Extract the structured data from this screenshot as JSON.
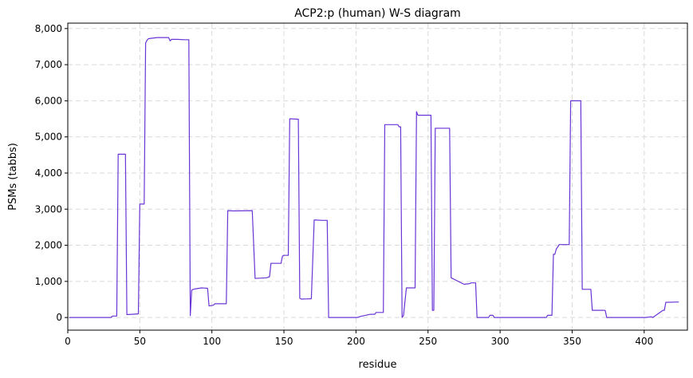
{
  "chart_data": {
    "type": "line",
    "title": "ACP2:p (human) W-S diagram",
    "xlabel": "residue",
    "ylabel": "PSMs (tabbs)",
    "xlim": [
      0,
      430
    ],
    "ylim": [
      -350,
      8150
    ],
    "xticks": [
      0,
      50,
      100,
      150,
      200,
      250,
      300,
      350,
      400
    ],
    "xtick_labels": [
      "0",
      "50",
      "100",
      "150",
      "200",
      "250",
      "300",
      "350",
      "400"
    ],
    "yticks": [
      0,
      1000,
      2000,
      3000,
      4000,
      5000,
      6000,
      7000,
      8000
    ],
    "ytick_labels": [
      "0",
      "1,000",
      "2,000",
      "3,000",
      "4,000",
      "5,000",
      "6,000",
      "7,000",
      "8,000"
    ],
    "grid": true,
    "color": "#6a35d6",
    "series": [
      {
        "x": [
          1,
          30,
          31,
          34,
          35,
          36,
          40,
          41,
          49,
          50,
          51,
          53,
          54,
          55,
          56,
          58,
          62,
          68,
          70,
          71,
          72,
          76,
          81,
          84,
          85,
          86,
          88,
          93,
          97,
          98,
          101,
          102,
          106,
          110,
          111,
          115,
          128,
          130,
          138,
          140,
          141,
          148,
          149,
          150,
          153,
          154,
          155,
          160,
          161,
          162,
          163,
          169,
          171,
          172,
          176,
          180,
          181,
          182,
          201,
          203,
          210,
          213,
          214,
          219,
          220,
          227,
          229,
          230,
          231,
          232,
          233,
          235,
          236,
          241,
          242,
          243,
          244,
          251,
          252,
          253,
          254,
          255,
          256,
          264,
          265,
          266,
          275,
          279,
          280,
          283,
          284,
          292,
          293,
          295,
          296,
          332,
          333,
          336,
          337,
          338,
          339,
          340,
          341,
          342,
          348,
          349,
          350,
          356,
          357,
          363,
          364,
          372,
          373,
          374,
          400,
          401,
          405,
          406,
          413,
          414,
          415,
          424
        ],
        "y": [
          0,
          0,
          40,
          40,
          4520,
          4520,
          4520,
          80,
          100,
          3140,
          3140,
          3140,
          7600,
          7680,
          7720,
          7730,
          7750,
          7750,
          7750,
          7660,
          7700,
          7700,
          7690,
          7690,
          50,
          760,
          790,
          820,
          810,
          320,
          340,
          380,
          380,
          380,
          2960,
          2950,
          2960,
          1080,
          1100,
          1130,
          1500,
          1500,
          1700,
          1720,
          1720,
          5500,
          5500,
          5490,
          530,
          510,
          510,
          520,
          2700,
          2700,
          2690,
          2690,
          0,
          0,
          0,
          30,
          90,
          90,
          140,
          140,
          5340,
          5340,
          5340,
          5280,
          5280,
          0,
          60,
          820,
          820,
          820,
          5700,
          5600,
          5600,
          5600,
          5600,
          200,
          200,
          5240,
          5240,
          5240,
          5240,
          1100,
          920,
          940,
          960,
          960,
          0,
          0,
          60,
          60,
          0,
          0,
          60,
          60,
          1750,
          1750,
          1900,
          1950,
          2020,
          2020,
          2020,
          6000,
          6000,
          6000,
          780,
          780,
          200,
          200,
          190,
          0,
          0,
          0,
          20,
          0,
          200,
          200,
          420,
          430
        ]
      }
    ]
  }
}
